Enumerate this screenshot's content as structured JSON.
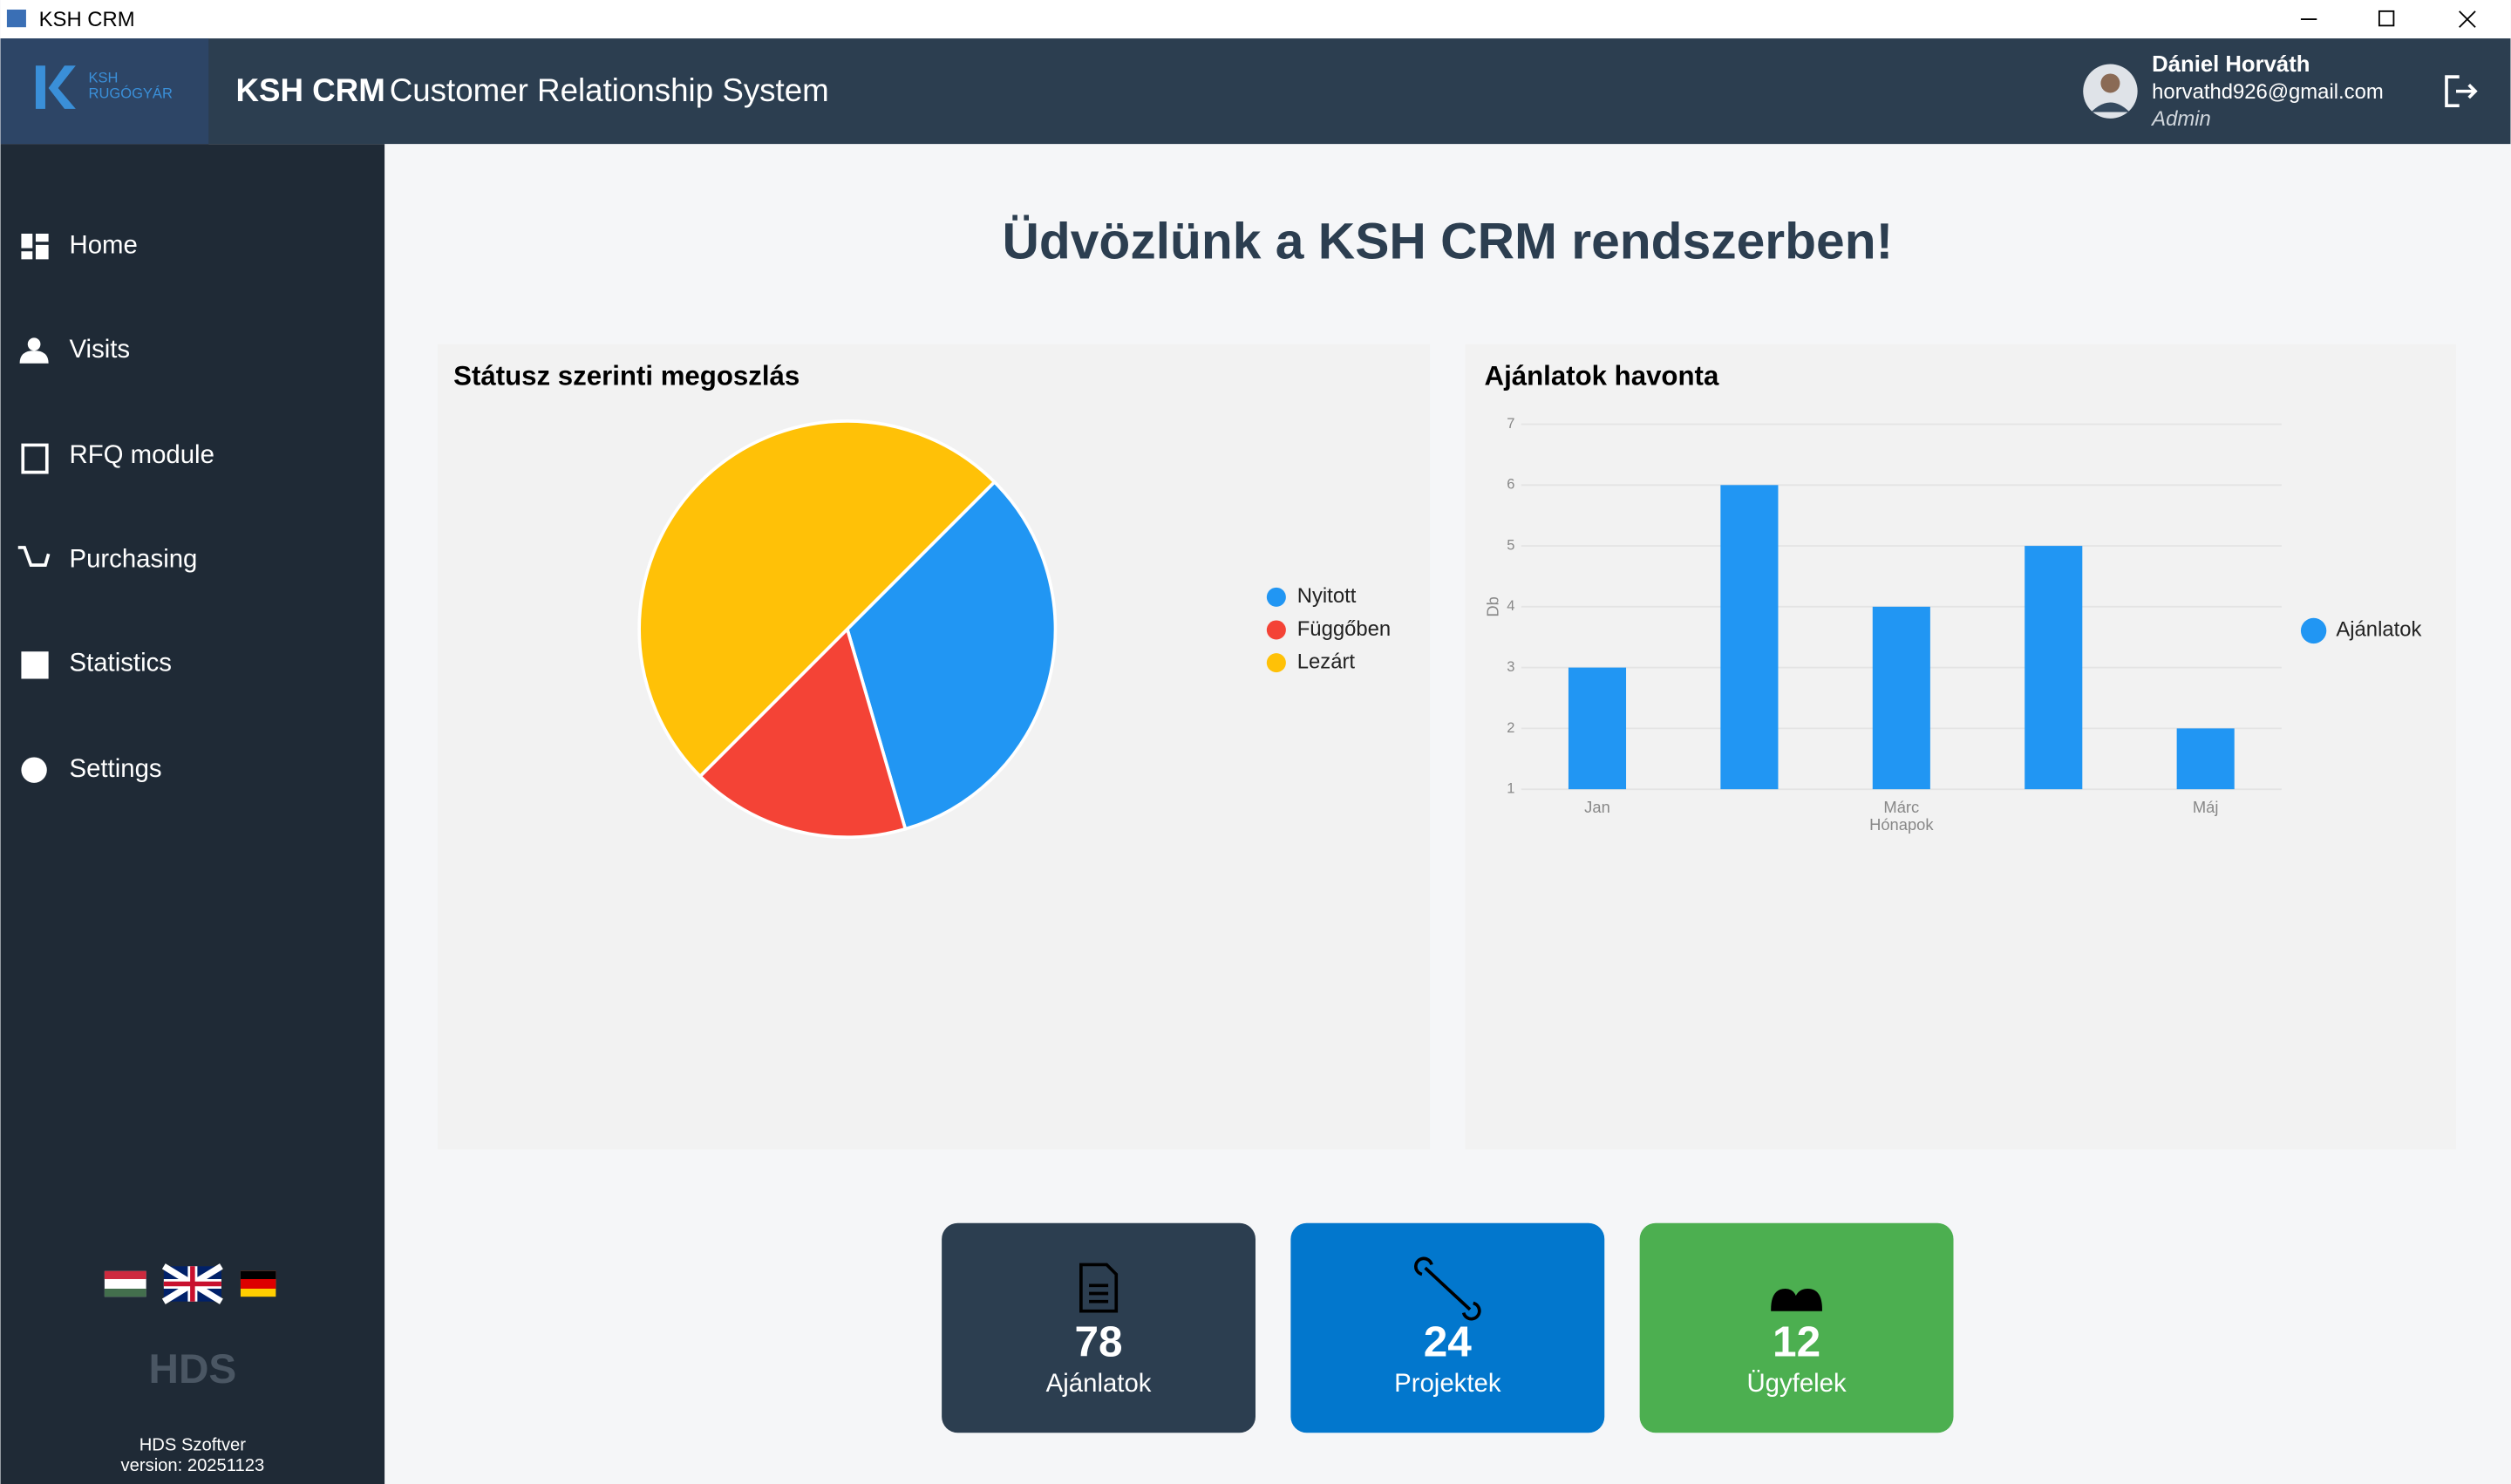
{
  "window": {
    "title": "KSH CRM"
  },
  "header": {
    "logo_line1": "KSH",
    "logo_line2": "RUGÓGYÁR",
    "app_name": "KSH CRM",
    "app_subtitle": "Customer Relationship System",
    "user": {
      "name": "Dániel Horváth",
      "email": "horvathd926@gmail.com",
      "role": "Admin"
    }
  },
  "sidebar": {
    "menu": [
      "Home",
      "Visits",
      "RFQ module",
      "Purchasing",
      "Statistics",
      "Settings"
    ],
    "footer": {
      "brand": "HDS",
      "company": "HDS Szoftver",
      "version": "version: 20251123"
    }
  },
  "welcome": "Üdvözlünk a KSH CRM rendszerben!",
  "chart_data": [
    {
      "type": "pie",
      "title": "Státusz szerinti megoszlás",
      "categories": [
        "Nyitott",
        "Függőben",
        "Lezárt"
      ],
      "values": [
        33,
        17,
        50
      ],
      "colors": [
        "#2196f3",
        "#f44336",
        "#ffc107"
      ],
      "legend": "right"
    },
    {
      "type": "bar",
      "title": "Ajánlatok havonta",
      "categories": [
        "Jan",
        null,
        "Márc",
        null,
        "Máj"
      ],
      "series": [
        {
          "name": "Ajánlatok",
          "color": "#2196f3",
          "values": [
            3,
            6,
            4,
            5,
            2
          ]
        }
      ],
      "ylim": [
        1,
        7
      ],
      "yticks": [
        1,
        2,
        3,
        4,
        5,
        6,
        7
      ],
      "y_label": "Db",
      "x_label": "Hónapok",
      "grid": true,
      "legend": "right"
    }
  ],
  "cards": [
    {
      "value": 78,
      "label": "Ajánlatok",
      "color": "#2c3e50"
    },
    {
      "value": 24,
      "label": "Projektek",
      "color": "#0277cd"
    },
    {
      "value": 12,
      "label": "Ügyfelek",
      "color": "#4caf50"
    }
  ]
}
